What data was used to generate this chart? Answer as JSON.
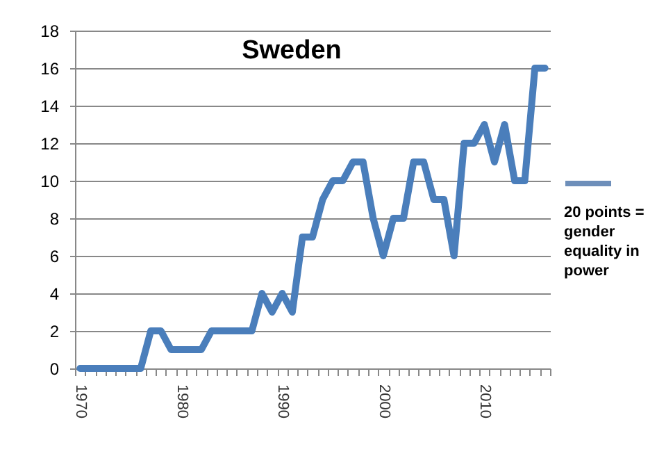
{
  "chart_data": {
    "type": "line",
    "title": "Sweden",
    "categories": [
      "1970",
      null,
      null,
      null,
      null,
      null,
      null,
      null,
      null,
      null,
      "1980",
      null,
      null,
      null,
      null,
      null,
      null,
      null,
      null,
      null,
      "1990",
      null,
      null,
      null,
      null,
      null,
      null,
      null,
      null,
      null,
      "2000",
      null,
      null,
      null,
      null,
      null,
      null,
      null,
      null,
      null,
      "2010",
      null,
      null,
      null,
      null,
      null,
      null
    ],
    "series": [
      {
        "color": "#4a7ebb",
        "values": [
          0,
          0,
          0,
          0,
          0,
          0,
          0,
          2,
          2,
          1,
          1,
          1,
          1,
          2,
          2,
          2,
          2,
          2,
          4,
          3,
          4,
          3,
          7,
          7,
          9,
          10,
          10,
          11,
          11,
          8,
          6,
          8,
          8,
          11,
          11,
          9,
          9,
          6,
          12,
          12,
          13,
          11,
          13,
          10,
          10,
          16,
          16
        ]
      }
    ],
    "ylim": [
      0,
      18
    ],
    "yticks": [
      0,
      2,
      4,
      6,
      8,
      10,
      12,
      14,
      16,
      18
    ],
    "grid": "y",
    "line_style": "solid",
    "annotations": [
      "20 points = gender equality in power"
    ]
  }
}
